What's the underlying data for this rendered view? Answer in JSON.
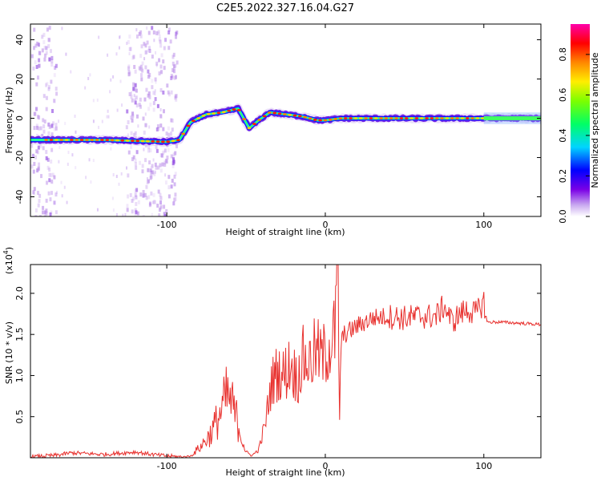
{
  "title": "C2E5.2022.327.16.04.G27",
  "chart_data": [
    {
      "type": "heatmap",
      "xlabel": "Height of straight line (km)",
      "ylabel": "Frequency (Hz)",
      "xlim": [
        -186,
        136
      ],
      "ylim": [
        -50,
        48
      ],
      "xticks": [
        -100,
        0,
        100
      ],
      "xtick_labels": [
        "-100",
        "0",
        "100"
      ],
      "yticks": [
        -40,
        -20,
        0,
        20,
        40
      ],
      "ytick_labels": [
        "-40",
        "-20",
        "0",
        "20",
        "40"
      ],
      "colorbar": {
        "label": "Normalized spectral amplitude",
        "range": [
          0,
          0.95
        ],
        "ticks": [
          0,
          0.2,
          0.4,
          0.6,
          0.8
        ],
        "tick_labels": [
          "0.0",
          "0.2",
          "0.4",
          "0.6",
          "0.8"
        ]
      },
      "ridge": {
        "x": [
          -186,
          -140,
          -100,
          -92,
          -85,
          -75,
          -65,
          -55,
          -48,
          -42,
          -35,
          -25,
          -15,
          -5,
          0,
          10,
          30,
          60,
          100,
          136
        ],
        "freq": [
          -11,
          -11,
          -12,
          -11,
          -2,
          2,
          3,
          5,
          -5,
          -1,
          3,
          2,
          1,
          -1,
          -1,
          0,
          0,
          0,
          0,
          0
        ]
      },
      "noise_bands_x": [
        [
          -186,
          -170
        ],
        [
          -126,
          -94
        ]
      ]
    },
    {
      "type": "line",
      "xlabel": "Height of straight line (km)",
      "ylabel": "SNR (10 * v/v)",
      "multiplier_label": "(x10",
      "multiplier_exponent": "4",
      "multiplier_close": ")",
      "xlim": [
        -186,
        136
      ],
      "ylim": [
        0,
        2.35
      ],
      "xticks": [
        -100,
        0,
        100
      ],
      "xtick_labels": [
        "-100",
        "0",
        "100"
      ],
      "yticks": [
        0.5,
        1.0,
        1.5,
        2.0
      ],
      "ytick_labels": [
        "0.5",
        "1.0",
        "1.5",
        "2.0"
      ],
      "series": [
        {
          "color": "#e8312e",
          "x": [
            -186,
            -170,
            -160,
            -140,
            -120,
            -105,
            -92,
            -85,
            -78,
            -72,
            -66,
            -62,
            -58,
            -54,
            -50,
            -46,
            -42,
            -38,
            -34,
            -30,
            -26,
            -22,
            -18,
            -14,
            -10,
            -6,
            -2,
            2,
            6,
            8,
            9,
            10,
            12,
            16,
            20,
            25,
            30,
            40,
            50,
            60,
            70,
            75,
            80,
            85,
            90,
            95,
            100,
            102,
            105,
            110,
            120,
            136
          ],
          "y": [
            0.01,
            0.03,
            0.06,
            0.04,
            0.07,
            0.03,
            0.01,
            0.02,
            0.15,
            0.3,
            0.55,
            0.75,
            0.6,
            0.35,
            0.06,
            0.03,
            0.1,
            0.4,
            0.9,
            1.05,
            1.0,
            1.15,
            0.95,
            1.2,
            1.15,
            1.3,
            1.2,
            1.35,
            1.5,
            2.3,
            0.4,
            1.4,
            1.5,
            1.55,
            1.6,
            1.65,
            1.7,
            1.72,
            1.7,
            1.72,
            1.72,
            1.85,
            1.65,
            1.75,
            1.8,
            1.75,
            1.9,
            1.65,
            1.65,
            1.65,
            1.64,
            1.62
          ]
        }
      ]
    }
  ]
}
